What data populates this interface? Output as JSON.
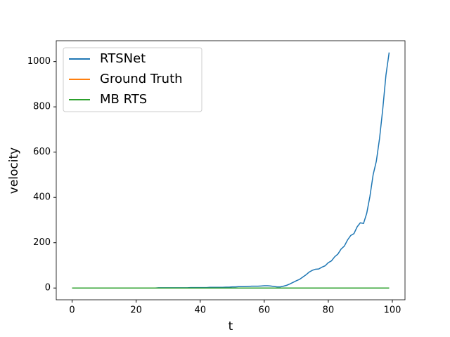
{
  "chart_data": {
    "type": "line",
    "xlabel": "t",
    "ylabel": "velocity",
    "x": [
      0,
      1,
      2,
      3,
      4,
      5,
      6,
      7,
      8,
      9,
      10,
      11,
      12,
      13,
      14,
      15,
      16,
      17,
      18,
      19,
      20,
      21,
      22,
      23,
      24,
      25,
      26,
      27,
      28,
      29,
      30,
      31,
      32,
      33,
      34,
      35,
      36,
      37,
      38,
      39,
      40,
      41,
      42,
      43,
      44,
      45,
      46,
      47,
      48,
      49,
      50,
      51,
      52,
      53,
      54,
      55,
      56,
      57,
      58,
      59,
      60,
      61,
      62,
      63,
      64,
      65,
      66,
      67,
      68,
      69,
      70,
      71,
      72,
      73,
      74,
      75,
      76,
      77,
      78,
      79,
      80,
      81,
      82,
      83,
      84,
      85,
      86,
      87,
      88,
      89,
      90,
      91,
      92,
      93,
      94,
      95,
      96,
      97,
      98,
      99
    ],
    "series": [
      {
        "name": "RTSNet",
        "color": "#1f77b4",
        "values": [
          0,
          0,
          0,
          0,
          0,
          0,
          0,
          0,
          0,
          0,
          0,
          0,
          0,
          0,
          0,
          0,
          0,
          0,
          0,
          0,
          0,
          0,
          0,
          0,
          0,
          0,
          0,
          1,
          1,
          1,
          1,
          1,
          1,
          1,
          1,
          1,
          1,
          2,
          2,
          2,
          2,
          2,
          2,
          3,
          3,
          3,
          3,
          3,
          4,
          4,
          5,
          5,
          6,
          6,
          6,
          7,
          8,
          8,
          8,
          9,
          10,
          10,
          9,
          7,
          5,
          5,
          8,
          12,
          18,
          25,
          32,
          38,
          48,
          58,
          70,
          78,
          83,
          84,
          92,
          98,
          112,
          120,
          138,
          150,
          172,
          185,
          212,
          232,
          240,
          270,
          288,
          285,
          330,
          405,
          500,
          560,
          660,
          790,
          940,
          1040
        ]
      },
      {
        "name": "Ground Truth",
        "color": "#ff7f0e",
        "values": [
          0,
          0,
          0,
          0,
          0,
          0,
          0,
          0,
          0,
          0,
          0,
          0,
          0,
          0,
          0,
          0,
          0,
          0,
          0,
          0,
          0,
          0,
          0,
          0,
          0,
          0,
          0,
          0,
          0,
          0,
          0,
          0,
          0,
          0,
          0,
          0,
          0,
          0,
          0,
          0,
          0,
          0,
          0,
          0,
          0,
          0,
          0,
          0,
          0,
          0,
          0,
          0,
          0,
          0,
          0,
          0,
          0,
          0,
          0,
          0,
          0,
          0,
          0,
          0,
          0,
          0,
          0,
          0,
          0,
          0,
          0,
          0,
          0,
          0,
          0,
          0,
          0,
          0,
          0,
          0,
          0,
          0,
          0,
          0,
          0,
          0,
          0,
          0,
          0,
          0,
          0,
          0,
          0,
          0,
          0,
          0,
          0,
          0,
          0,
          0
        ]
      },
      {
        "name": "MB RTS",
        "color": "#2ca02c",
        "values": [
          0,
          0,
          0,
          0,
          0,
          0,
          0,
          0,
          0,
          0,
          0,
          0,
          0,
          0,
          0,
          0,
          0,
          0,
          0,
          0,
          0,
          0,
          0,
          0,
          0,
          0,
          0,
          0,
          0,
          0,
          0,
          0,
          0,
          0,
          0,
          0,
          0,
          0,
          0,
          0,
          0,
          0,
          0,
          0,
          0,
          0,
          0,
          0,
          0,
          0,
          0,
          0,
          0,
          0,
          0,
          0,
          0,
          0,
          0,
          0,
          0,
          0,
          0,
          0,
          0,
          0,
          0,
          0,
          0,
          0,
          0,
          0,
          0,
          0,
          0,
          0,
          0,
          0,
          0,
          0,
          0,
          0,
          0,
          0,
          0,
          0,
          0,
          0,
          0,
          0,
          0,
          0,
          0,
          0,
          0,
          0,
          0,
          0,
          0,
          0
        ]
      }
    ],
    "xlim": [
      -4.95,
      103.95
    ],
    "xticks": [
      0,
      20,
      40,
      60,
      80,
      100
    ],
    "ylim": [
      -52,
      1092
    ],
    "yticks": [
      0,
      200,
      400,
      600,
      800,
      1000
    ],
    "legend": "upper left"
  }
}
